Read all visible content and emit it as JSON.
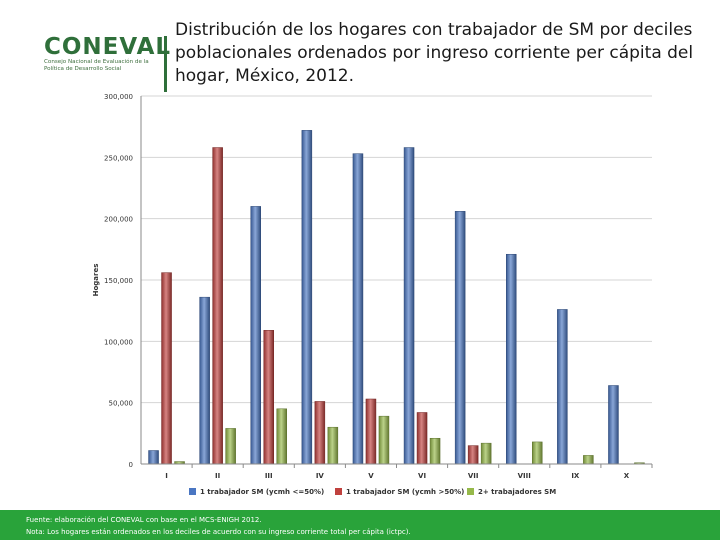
{
  "header": {
    "logo_text": "CONEVAL",
    "logo_subtitle": "Consejo Nacional de Evaluación de la Política de Desarrollo Social",
    "title": "Distribución de los hogares con trabajador de SM por deciles poblacionales ordenados por ingreso corriente per cápita del hogar, México, 2012."
  },
  "chart_data": {
    "type": "bar",
    "title": "Distribución de los hogares con trabajador de SM por deciles poblacionales ordenados por ingreso corriente per cápita del hogar, México, 2012.",
    "xlabel": "",
    "ylabel": "Hogares",
    "ylim": [
      0,
      300000
    ],
    "yticks": [
      0,
      50000,
      100000,
      150000,
      200000,
      250000,
      300000
    ],
    "ytick_labels": [
      "0",
      "50,000",
      "100,000",
      "150,000",
      "200,000",
      "250,000",
      "300,000"
    ],
    "categories": [
      "I",
      "II",
      "III",
      "IV",
      "V",
      "VI",
      "VII",
      "VIII",
      "IX",
      "X"
    ],
    "series": [
      {
        "name": "1 trabajador SM (ycmh <=50%)",
        "color": "#4a76c2",
        "values": [
          11000,
          136000,
          210000,
          272000,
          253000,
          258000,
          206000,
          171000,
          126000,
          64000
        ]
      },
      {
        "name": "1 trabajador SM (ycmh >50%)",
        "color": "#c0413e",
        "values": [
          156000,
          258000,
          109000,
          51000,
          53000,
          42000,
          15000,
          0,
          0,
          0
        ]
      },
      {
        "name": "2+ trabajadores SM",
        "color": "#96b94a",
        "values": [
          2000,
          29000,
          45000,
          30000,
          39000,
          21000,
          17000,
          18000,
          7000,
          1000
        ]
      }
    ],
    "grid": true,
    "legend_position": "bottom"
  },
  "footer": {
    "source": "Fuente: elaboración del CONEVAL con base en el MCS-ENIGH 2012.",
    "note": "Nota: Los hogares están ordenados en los deciles de acuerdo con su ingreso corriente total per cápita (ictpc)."
  }
}
